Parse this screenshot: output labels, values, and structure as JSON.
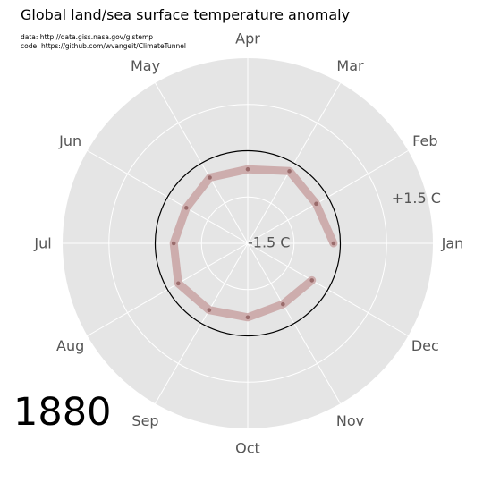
{
  "chart_data": {
    "type": "line",
    "projection": "polar",
    "title": "Global land/sea surface temperature anomaly",
    "credits": [
      "data: http://data.giss.nasa.gov/gistemp",
      "code: https://github.com/wvangeit/ClimateTunnel"
    ],
    "year": "1880",
    "categories": [
      "Jan",
      "Feb",
      "Mar",
      "Apr",
      "May",
      "Jun",
      "Jul",
      "Aug",
      "Sep",
      "Oct",
      "Nov",
      "Dec"
    ],
    "radial_tick_labels": [
      "-1.5 C",
      "+1.5 C"
    ],
    "r_range": [
      -1.5,
      1.5
    ],
    "reference_ring": 0.0,
    "series": [
      {
        "values": [
          -0.11,
          -0.22,
          -0.15,
          -0.3,
          -0.27,
          -0.35,
          -0.3,
          -0.2,
          -0.25,
          -0.3,
          -0.36,
          -0.3
        ]
      }
    ],
    "grid": true,
    "colors": {
      "background": "#e5e5e5",
      "grid": "#ffffff",
      "series": "#c9a3a3",
      "points": "#9a6b6b",
      "reference_ring": "#000000"
    }
  }
}
